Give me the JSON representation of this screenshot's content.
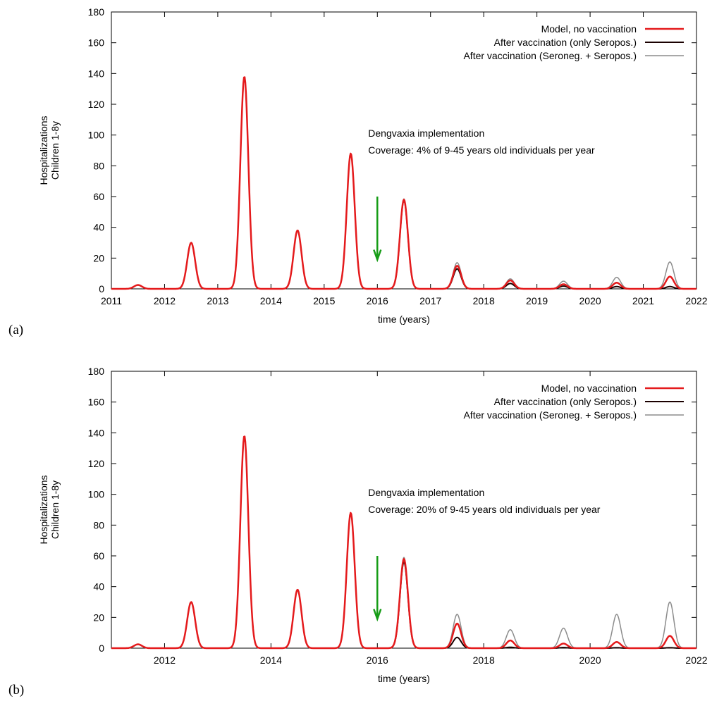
{
  "chart_data": [
    {
      "type": "line",
      "panel_label": "(a)",
      "xlabel": "time (years)",
      "ylabel_line1": "Hospitalizations",
      "ylabel_line2": "Children 1-8y",
      "xlim": [
        2011,
        2022
      ],
      "ylim": [
        0,
        180
      ],
      "xticks": [
        2011,
        2012,
        2013,
        2014,
        2015,
        2016,
        2017,
        2018,
        2019,
        2020,
        2021,
        2022
      ],
      "yticks": [
        0,
        20,
        40,
        60,
        80,
        100,
        120,
        140,
        160,
        180
      ],
      "grid": false,
      "legend_position": "top-right",
      "annotation": {
        "line1": "Dengvaxia implementation",
        "line2": "Coverage: 4% of 9-45 years old individuals per year",
        "x": 2016.0,
        "y": 99
      },
      "arrow": {
        "x": 2016.0,
        "y_start": 60,
        "y_end": 19,
        "color": "#169c16"
      },
      "series": [
        {
          "name": "Model, no vaccination",
          "color": "#e41a1c",
          "width": 2.5,
          "peaks": [
            [
              2011.5,
              2.5
            ],
            [
              2012.5,
              30
            ],
            [
              2013.5,
              138
            ],
            [
              2014.5,
              38
            ],
            [
              2015.5,
              88
            ],
            [
              2016.5,
              58
            ],
            [
              2017.5,
              15
            ],
            [
              2018.5,
              5.5
            ],
            [
              2019.5,
              3
            ],
            [
              2020.5,
              4
            ],
            [
              2021.5,
              8
            ]
          ]
        },
        {
          "name": "After vaccination (only Seropos.)",
          "color": "#1a0000",
          "width": 2,
          "peaks": [
            [
              2016.5,
              57.5
            ],
            [
              2017.5,
              13
            ],
            [
              2018.5,
              3.5
            ],
            [
              2019.5,
              1.8
            ],
            [
              2020.5,
              1.5
            ],
            [
              2021.5,
              1.5
            ]
          ]
        },
        {
          "name": "After vaccination (Seroneg. + Seropos.)",
          "color": "#8c8c8c",
          "width": 1.5,
          "peaks": [
            [
              2016.5,
              58.5
            ],
            [
              2017.5,
              17
            ],
            [
              2018.5,
              6.5
            ],
            [
              2019.5,
              5
            ],
            [
              2020.5,
              7.5
            ],
            [
              2021.5,
              17.5
            ]
          ]
        }
      ]
    },
    {
      "type": "line",
      "panel_label": "(b)",
      "xlabel": "time (years)",
      "ylabel_line1": "Hospitalizations",
      "ylabel_line2": "Children 1-8y",
      "xlim": [
        2011,
        2022
      ],
      "ylim": [
        0,
        180
      ],
      "xticks": [
        2012,
        2014,
        2016,
        2018,
        2020,
        2022
      ],
      "yticks": [
        0,
        20,
        40,
        60,
        80,
        100,
        120,
        140,
        160,
        180
      ],
      "grid": false,
      "legend_position": "top-right",
      "annotation": {
        "line1": "Dengvaxia implementation",
        "line2": "Coverage: 20% of 9-45 years old individuals per year",
        "x": 2016.0,
        "y": 99
      },
      "arrow": {
        "x": 2016.0,
        "y_start": 60,
        "y_end": 19,
        "color": "#169c16"
      },
      "series": [
        {
          "name": "Model, no vaccination",
          "color": "#e41a1c",
          "width": 2.5,
          "peaks": [
            [
              2011.5,
              2.5
            ],
            [
              2012.5,
              30
            ],
            [
              2013.5,
              138
            ],
            [
              2014.5,
              38
            ],
            [
              2015.5,
              88
            ],
            [
              2016.5,
              58
            ],
            [
              2017.5,
              16
            ],
            [
              2018.5,
              5
            ],
            [
              2019.5,
              3
            ],
            [
              2020.5,
              4
            ],
            [
              2021.5,
              8
            ]
          ]
        },
        {
          "name": "After vaccination (only Seropos.)",
          "color": "#1a0000",
          "width": 2,
          "peaks": [
            [
              2016.5,
              56
            ],
            [
              2017.5,
              7
            ],
            [
              2018.5,
              0.6
            ],
            [
              2019.5,
              0.4
            ],
            [
              2020.5,
              0.3
            ],
            [
              2021.5,
              0.3
            ]
          ]
        },
        {
          "name": "After vaccination (Seroneg. + Seropos.)",
          "color": "#8c8c8c",
          "width": 1.5,
          "peaks": [
            [
              2016.5,
              59
            ],
            [
              2017.5,
              22
            ],
            [
              2018.5,
              12
            ],
            [
              2019.5,
              13
            ],
            [
              2020.5,
              22
            ],
            [
              2021.5,
              30
            ]
          ]
        }
      ]
    }
  ]
}
